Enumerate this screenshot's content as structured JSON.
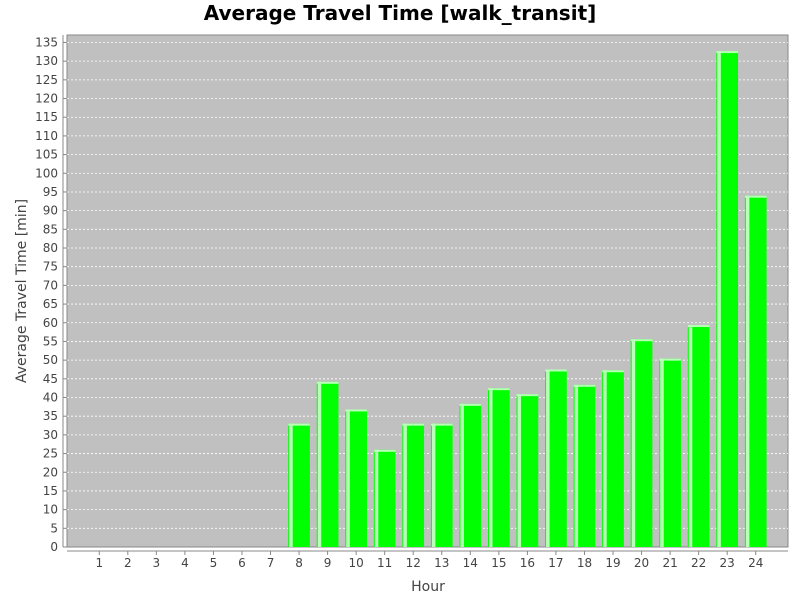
{
  "chart_data": {
    "type": "bar",
    "title": "Average Travel Time [walk_transit]",
    "xlabel": "Hour",
    "ylabel": "Average Travel Time [min]",
    "categories": [
      "1",
      "2",
      "3",
      "4",
      "5",
      "6",
      "7",
      "8",
      "9",
      "10",
      "11",
      "12",
      "13",
      "14",
      "15",
      "16",
      "17",
      "18",
      "19",
      "20",
      "21",
      "22",
      "23",
      "24"
    ],
    "values": [
      0,
      0,
      0,
      0,
      0,
      0,
      0,
      33,
      44.2,
      36.8,
      26,
      33,
      33,
      38.3,
      42.5,
      40.9,
      47.5,
      43.4,
      47.3,
      55.6,
      50.4,
      59.4,
      132.7,
      94
    ],
    "ylim": [
      0,
      137
    ],
    "yticks": [
      0,
      5,
      10,
      15,
      20,
      25,
      30,
      35,
      40,
      45,
      50,
      55,
      60,
      65,
      70,
      75,
      80,
      85,
      90,
      95,
      100,
      105,
      110,
      115,
      120,
      125,
      130,
      135
    ],
    "grid": true,
    "colors": {
      "bar": "#00ff00",
      "bar_highlight": "#b8ffb8",
      "plot_bg": "#c0c0c0",
      "grid": "#ffffff",
      "axis": "#888888"
    }
  }
}
